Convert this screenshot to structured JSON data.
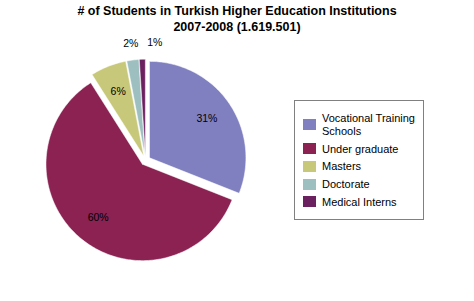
{
  "chart_data": {
    "type": "pie",
    "title": "# of Students in Turkish Higher Education Institutions",
    "subtitle": "2007-2008 (1.619.501)",
    "categories": [
      "Vocational Training\nSchools",
      "Under graduate",
      "Masters",
      "Doctorate",
      "Medical Interns"
    ],
    "values": [
      31,
      60,
      6,
      2,
      1
    ],
    "value_labels": [
      "31%",
      "60%",
      "6%",
      "2%",
      "1%"
    ],
    "colors": [
      "#8080c0",
      "#8b2252",
      "#c8c87a",
      "#9dbfbf",
      "#6b2060"
    ],
    "data_labels": true,
    "legend": "right"
  }
}
